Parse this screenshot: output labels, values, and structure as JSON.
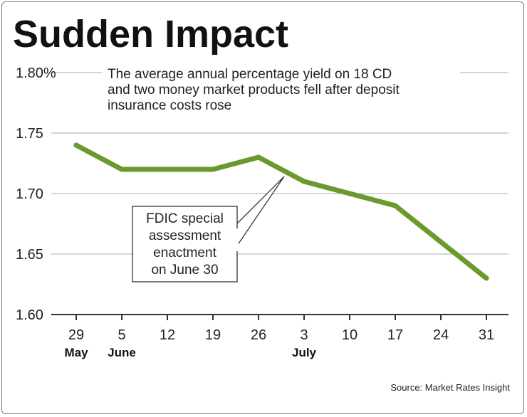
{
  "chart_data": {
    "type": "line",
    "title": "Sudden Impact",
    "subtitle": [
      "The average annual percentage yield on 18 CD",
      "and two money market products fell after deposit",
      "insurance costs rose"
    ],
    "categories": [
      "29",
      "5",
      "12",
      "19",
      "26",
      "3",
      "10",
      "17",
      "24",
      "31"
    ],
    "category_sublabels": [
      "May",
      "June",
      "",
      "",
      "",
      "July",
      "",
      "",
      "",
      ""
    ],
    "series": [
      {
        "name": "Average annual percentage yield",
        "values": [
          1.74,
          1.72,
          1.72,
          1.72,
          1.73,
          1.71,
          1.7,
          1.69,
          1.66,
          1.63
        ],
        "color": "#6a9a2c"
      }
    ],
    "ylim": [
      1.6,
      1.8
    ],
    "yticks": [
      1.6,
      1.65,
      1.7,
      1.75,
      1.8
    ],
    "ytick_labels": [
      "1.60",
      "1.65",
      "1.70",
      "1.75",
      "1.80%"
    ],
    "grid": true,
    "annotation": {
      "lines": [
        "FDIC special",
        "assessment",
        "enactment",
        "on June 30"
      ]
    },
    "source": "Source: Market Rates Insight"
  }
}
